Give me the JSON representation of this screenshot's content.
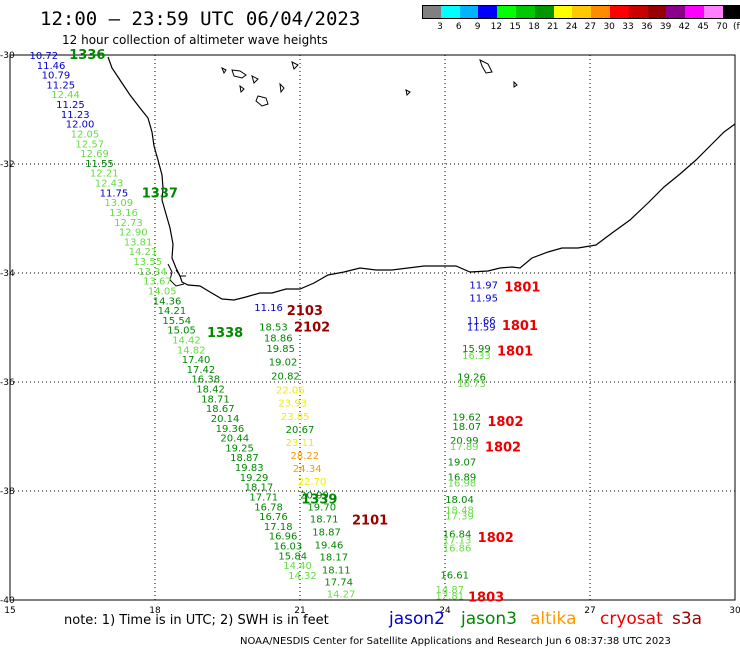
{
  "header": {
    "title": "12:00 – 23:59 UTC 06/04/2023",
    "subtitle": "12 hour collection of altimeter wave heights"
  },
  "legend": {
    "unit": "(ft)",
    "colors": [
      "#808080",
      "#00ffff",
      "#00b4ff",
      "#0000ff",
      "#00ff00",
      "#00c800",
      "#009600",
      "#ffff00",
      "#ffc800",
      "#ff8c00",
      "#ff0000",
      "#c80000",
      "#960000",
      "#8b008b",
      "#ff00ff",
      "#ff80ff",
      "#000000"
    ],
    "ticks": [
      "3",
      "6",
      "9",
      "12",
      "15",
      "18",
      "21",
      "24",
      "27",
      "30",
      "33",
      "36",
      "39",
      "42",
      "45",
      "70"
    ]
  },
  "axes": {
    "lon_ticks": [
      "15",
      "18",
      "21",
      "24",
      "27",
      "30"
    ],
    "lat_ticks": [
      "-30",
      "-32",
      "-34",
      "-36",
      "-38",
      "-40"
    ]
  },
  "observations": {
    "colors": {
      "blue": "#0000cc",
      "lgreen": "#66dd44",
      "dgreen": "#008800",
      "yellow": "#eeee00",
      "orange": "#ff9900",
      "red": "#ee0000",
      "dred": "#990000"
    },
    "items": [
      {
        "t": "10.72",
        "lon": 15.7,
        "lat": -30.0,
        "c": "blue"
      },
      {
        "t": "11.46",
        "lon": 15.85,
        "lat": -30.18,
        "c": "blue"
      },
      {
        "t": "10.79",
        "lon": 15.95,
        "lat": -30.36,
        "c": "blue"
      },
      {
        "t": "11.25",
        "lon": 16.05,
        "lat": -30.54,
        "c": "blue"
      },
      {
        "t": "12.44",
        "lon": 16.15,
        "lat": -30.72,
        "c": "lgreen"
      },
      {
        "t": "11.25",
        "lon": 16.25,
        "lat": -30.9,
        "c": "blue"
      },
      {
        "t": "11.23",
        "lon": 16.35,
        "lat": -31.08,
        "c": "blue"
      },
      {
        "t": "12.00",
        "lon": 16.45,
        "lat": -31.26,
        "c": "blue"
      },
      {
        "t": "12.05",
        "lon": 16.55,
        "lat": -31.44,
        "c": "lgreen"
      },
      {
        "t": "12.57",
        "lon": 16.65,
        "lat": -31.62,
        "c": "lgreen"
      },
      {
        "t": "12.69",
        "lon": 16.75,
        "lat": -31.8,
        "c": "lgreen"
      },
      {
        "t": "11.55",
        "lon": 16.85,
        "lat": -31.98,
        "c": "dgreen"
      },
      {
        "t": "12.21",
        "lon": 16.95,
        "lat": -32.16,
        "c": "lgreen"
      },
      {
        "t": "12.43",
        "lon": 17.05,
        "lat": -32.34,
        "c": "lgreen"
      },
      {
        "t": "11.75",
        "lon": 17.15,
        "lat": -32.52,
        "c": "blue"
      },
      {
        "t": "13.09",
        "lon": 17.25,
        "lat": -32.7,
        "c": "lgreen"
      },
      {
        "t": "13.16",
        "lon": 17.35,
        "lat": -32.88,
        "c": "lgreen"
      },
      {
        "t": "12.73",
        "lon": 17.45,
        "lat": -33.06,
        "c": "lgreen"
      },
      {
        "t": "12.90",
        "lon": 17.55,
        "lat": -33.24,
        "c": "lgreen"
      },
      {
        "t": "13.81",
        "lon": 17.65,
        "lat": -33.42,
        "c": "lgreen"
      },
      {
        "t": "14.21",
        "lon": 17.75,
        "lat": -33.6,
        "c": "lgreen"
      },
      {
        "t": "13.55",
        "lon": 17.85,
        "lat": -33.78,
        "c": "lgreen"
      },
      {
        "t": "13.34",
        "lon": 17.95,
        "lat": -33.96,
        "c": "lgreen"
      },
      {
        "t": "13.67",
        "lon": 18.05,
        "lat": -34.14,
        "c": "lgreen"
      },
      {
        "t": "14.05",
        "lon": 18.15,
        "lat": -34.32,
        "c": "lgreen"
      },
      {
        "t": "14.36",
        "lon": 18.25,
        "lat": -34.5,
        "c": "dgreen"
      },
      {
        "t": "14.21",
        "lon": 18.35,
        "lat": -34.68,
        "c": "dgreen"
      },
      {
        "t": "15.54",
        "lon": 18.45,
        "lat": -34.86,
        "c": "dgreen"
      },
      {
        "t": "15.05",
        "lon": 18.55,
        "lat": -35.04,
        "c": "dgreen"
      },
      {
        "t": "14.42",
        "lon": 18.65,
        "lat": -35.22,
        "c": "lgreen"
      },
      {
        "t": "14.82",
        "lon": 18.75,
        "lat": -35.4,
        "c": "lgreen"
      },
      {
        "t": "17.40",
        "lon": 18.85,
        "lat": -35.58,
        "c": "dgreen"
      },
      {
        "t": "17.42",
        "lon": 18.95,
        "lat": -35.76,
        "c": "dgreen"
      },
      {
        "t": "16.38",
        "lon": 19.05,
        "lat": -35.94,
        "c": "dgreen"
      },
      {
        "t": "18.42",
        "lon": 19.15,
        "lat": -36.12,
        "c": "dgreen"
      },
      {
        "t": "18.71",
        "lon": 19.25,
        "lat": -36.3,
        "c": "dgreen"
      },
      {
        "t": "18.67",
        "lon": 19.35,
        "lat": -36.48,
        "c": "dgreen"
      },
      {
        "t": "20.14",
        "lon": 19.45,
        "lat": -36.66,
        "c": "dgreen"
      },
      {
        "t": "19.36",
        "lon": 19.55,
        "lat": -36.84,
        "c": "dgreen"
      },
      {
        "t": "20.44",
        "lon": 19.65,
        "lat": -37.02,
        "c": "dgreen"
      },
      {
        "t": "19.25",
        "lon": 19.75,
        "lat": -37.2,
        "c": "dgreen"
      },
      {
        "t": "18.87",
        "lon": 19.85,
        "lat": -37.38,
        "c": "dgreen"
      },
      {
        "t": "19.83",
        "lon": 19.95,
        "lat": -37.56,
        "c": "dgreen"
      },
      {
        "t": "19.29",
        "lon": 20.05,
        "lat": -37.74,
        "c": "dgreen"
      },
      {
        "t": "18.17",
        "lon": 20.15,
        "lat": -37.92,
        "c": "dgreen"
      },
      {
        "t": "17.71",
        "lon": 20.25,
        "lat": -38.1,
        "c": "dgreen"
      },
      {
        "t": "16.78",
        "lon": 20.35,
        "lat": -38.28,
        "c": "dgreen"
      },
      {
        "t": "16.76",
        "lon": 20.45,
        "lat": -38.46,
        "c": "dgreen"
      },
      {
        "t": "17.18",
        "lon": 20.55,
        "lat": -38.64,
        "c": "dgreen"
      },
      {
        "t": "16.96",
        "lon": 20.65,
        "lat": -38.82,
        "c": "dgreen"
      },
      {
        "t": "16.03",
        "lon": 20.75,
        "lat": -39.0,
        "c": "dgreen"
      },
      {
        "t": "15.84",
        "lon": 20.85,
        "lat": -39.18,
        "c": "dgreen"
      },
      {
        "t": "14.40",
        "lon": 20.95,
        "lat": -39.36,
        "c": "lgreen"
      },
      {
        "t": "14.32",
        "lon": 21.05,
        "lat": -39.54,
        "c": "lgreen"
      },
      {
        "t": "11.16",
        "lon": 20.35,
        "lat": -34.62,
        "c": "blue"
      },
      {
        "t": "18.53",
        "lon": 20.45,
        "lat": -34.98,
        "c": "dgreen"
      },
      {
        "t": "18.86",
        "lon": 20.55,
        "lat": -35.18,
        "c": "dgreen"
      },
      {
        "t": "19.85",
        "lon": 20.6,
        "lat": -35.38,
        "c": "dgreen"
      },
      {
        "t": "19.02",
        "lon": 20.65,
        "lat": -35.62,
        "c": "dgreen"
      },
      {
        "t": "20.82",
        "lon": 20.7,
        "lat": -35.88,
        "c": "dgreen"
      },
      {
        "t": "22.06",
        "lon": 20.8,
        "lat": -36.14,
        "c": "yellow"
      },
      {
        "t": "23.93",
        "lon": 20.85,
        "lat": -36.38,
        "c": "yellow"
      },
      {
        "t": "23.85",
        "lon": 20.9,
        "lat": -36.62,
        "c": "yellow"
      },
      {
        "t": "20.67",
        "lon": 21.0,
        "lat": -36.86,
        "c": "dgreen"
      },
      {
        "t": "23.11",
        "lon": 21.0,
        "lat": -37.1,
        "c": "yellow"
      },
      {
        "t": "28.22",
        "lon": 21.1,
        "lat": -37.34,
        "c": "orange"
      },
      {
        "t": "24.34",
        "lon": 21.15,
        "lat": -37.58,
        "c": "orange"
      },
      {
        "t": "22.70",
        "lon": 21.25,
        "lat": -37.82,
        "c": "yellow"
      },
      {
        "t": "20.99",
        "lon": 21.3,
        "lat": -38.06,
        "c": "dgreen"
      },
      {
        "t": "19.70",
        "lon": 21.45,
        "lat": -38.28,
        "c": "dgreen"
      },
      {
        "t": "18.71",
        "lon": 21.5,
        "lat": -38.5,
        "c": "dgreen"
      },
      {
        "t": "18.87",
        "lon": 21.55,
        "lat": -38.74,
        "c": "dgreen"
      },
      {
        "t": "19.46",
        "lon": 21.6,
        "lat": -38.98,
        "c": "dgreen"
      },
      {
        "t": "18.17",
        "lon": 21.7,
        "lat": -39.2,
        "c": "dgreen"
      },
      {
        "t": "18.11",
        "lon": 21.75,
        "lat": -39.44,
        "c": "dgreen"
      },
      {
        "t": "17.74",
        "lon": 21.8,
        "lat": -39.66,
        "c": "dgreen"
      },
      {
        "t": "14.27",
        "lon": 21.85,
        "lat": -39.88,
        "c": "lgreen"
      },
      {
        "t": "11.97",
        "lon": 24.8,
        "lat": -34.21,
        "c": "blue"
      },
      {
        "t": "11.95",
        "lon": 24.8,
        "lat": -34.45,
        "c": "blue"
      },
      {
        "t": "11.66",
        "lon": 24.75,
        "lat": -34.86,
        "c": "blue"
      },
      {
        "t": "11.59",
        "lon": 24.75,
        "lat": -34.98,
        "c": "blue"
      },
      {
        "t": "15.99",
        "lon": 24.65,
        "lat": -35.38,
        "c": "dgreen"
      },
      {
        "t": "16.33",
        "lon": 24.65,
        "lat": -35.5,
        "c": "lgreen"
      },
      {
        "t": "19.26",
        "lon": 24.55,
        "lat": -35.9,
        "c": "dgreen"
      },
      {
        "t": "16.73",
        "lon": 24.55,
        "lat": -36.02,
        "c": "lgreen"
      },
      {
        "t": "19.62",
        "lon": 24.45,
        "lat": -36.63,
        "c": "dgreen"
      },
      {
        "t": "18.07",
        "lon": 24.45,
        "lat": -36.81,
        "c": "dgreen"
      },
      {
        "t": "20.99",
        "lon": 24.4,
        "lat": -37.06,
        "c": "dgreen"
      },
      {
        "t": "17.89",
        "lon": 24.4,
        "lat": -37.17,
        "c": "lgreen"
      },
      {
        "t": "19.07",
        "lon": 24.35,
        "lat": -37.46,
        "c": "dgreen"
      },
      {
        "t": "16.89",
        "lon": 24.35,
        "lat": -37.73,
        "c": "dgreen"
      },
      {
        "t": "16.98",
        "lon": 24.35,
        "lat": -37.84,
        "c": "lgreen"
      },
      {
        "t": "18.04",
        "lon": 24.3,
        "lat": -38.15,
        "c": "dgreen"
      },
      {
        "t": "18.48",
        "lon": 24.3,
        "lat": -38.34,
        "c": "lgreen"
      },
      {
        "t": "17.39",
        "lon": 24.3,
        "lat": -38.45,
        "c": "lgreen"
      },
      {
        "t": "16.84",
        "lon": 24.25,
        "lat": -38.78,
        "c": "dgreen"
      },
      {
        "t": "17.13",
        "lon": 24.25,
        "lat": -38.89,
        "c": "lgreen"
      },
      {
        "t": "16.86",
        "lon": 24.25,
        "lat": -39.04,
        "c": "lgreen"
      },
      {
        "t": "16.61",
        "lon": 24.2,
        "lat": -39.53,
        "c": "dgreen"
      },
      {
        "t": "14.87",
        "lon": 24.1,
        "lat": -39.8,
        "c": "lgreen"
      },
      {
        "t": "12.81",
        "lon": 24.1,
        "lat": -39.92,
        "c": "lgreen"
      }
    ],
    "passes": [
      {
        "t": "1336",
        "lon": 16.6,
        "lat": -29.98,
        "c": "dgreen"
      },
      {
        "t": "1337",
        "lon": 18.1,
        "lat": -32.52,
        "c": "dgreen"
      },
      {
        "t": "1338",
        "lon": 19.45,
        "lat": -35.08,
        "c": "dgreen"
      },
      {
        "t": "1339",
        "lon": 21.4,
        "lat": -38.14,
        "c": "dgreen"
      },
      {
        "t": "2103",
        "lon": 21.1,
        "lat": -34.68,
        "c": "dred"
      },
      {
        "t": "2102",
        "lon": 21.25,
        "lat": -34.98,
        "c": "dred"
      },
      {
        "t": "2101",
        "lon": 22.45,
        "lat": -38.52,
        "c": "dred"
      },
      {
        "t": "1801",
        "lon": 25.6,
        "lat": -34.25,
        "c": "red"
      },
      {
        "t": "1801",
        "lon": 25.55,
        "lat": -34.95,
        "c": "red"
      },
      {
        "t": "1801",
        "lon": 25.45,
        "lat": -35.42,
        "c": "red"
      },
      {
        "t": "1802",
        "lon": 25.25,
        "lat": -36.72,
        "c": "red"
      },
      {
        "t": "1802",
        "lon": 25.2,
        "lat": -37.18,
        "c": "red"
      },
      {
        "t": "1802",
        "lon": 25.05,
        "lat": -38.84,
        "c": "red"
      },
      {
        "t": "1803",
        "lon": 24.85,
        "lat": -39.94,
        "c": "red"
      }
    ]
  },
  "note": "note:  1) Time is in UTC;  2) SWH is in feet",
  "satellites": [
    {
      "name": "jason2",
      "color": "#0000cc"
    },
    {
      "name": "jason3",
      "color": "#008800"
    },
    {
      "name": "altika",
      "color": "#ff9900"
    },
    {
      "name": "cryosat",
      "color": "#ee0000"
    },
    {
      "name": "s3a",
      "color": "#990000"
    }
  ],
  "footer": "NOAA/NESDIS Center for Satellite Applications and Research   Jun  6 08:37:38 UTC 2023"
}
